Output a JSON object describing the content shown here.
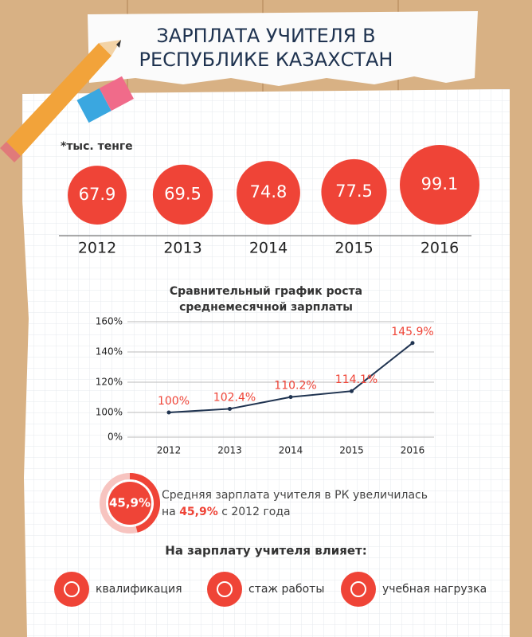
{
  "title": [
    "ЗАРПЛАТА УЧИТЕЛЯ В",
    "РЕСПУБЛИКЕ КАЗАХСТАН"
  ],
  "chart_data": [
    {
      "type": "bubble",
      "note": "*тыс. тенге",
      "categories": [
        "2012",
        "2013",
        "2014",
        "2015",
        "2016"
      ],
      "values": [
        67.9,
        69.5,
        74.8,
        77.5,
        99.1
      ],
      "color": "#ef4437"
    },
    {
      "type": "line",
      "title": [
        "Сравнительный график роста",
        "среднемесячной зарплаты"
      ],
      "categories": [
        "2012",
        "2013",
        "2014",
        "2015",
        "2016"
      ],
      "values": [
        100,
        102.4,
        110.2,
        114.1,
        145.9
      ],
      "value_labels": [
        "100%",
        "102.4%",
        "110.2%",
        "114.1%",
        "145.9%"
      ],
      "color": "#1f3350",
      "label_color": "#ef4437",
      "ylim": [
        0,
        160
      ],
      "axis_break": [
        0,
        100
      ],
      "yticks": [
        {
          "value": 0,
          "label": "0%"
        },
        {
          "value": 100,
          "label": "100%"
        },
        {
          "value": 120,
          "label": "120%"
        },
        {
          "value": 140,
          "label": "140%"
        },
        {
          "value": 160,
          "label": "160%"
        }
      ],
      "grid": true
    }
  ],
  "stat": {
    "ring": {
      "value": 45.9,
      "label": "45,9%"
    },
    "line1": "Средняя зарплата учителя в РК увеличилась",
    "before": "на",
    "after": "с 2012 года"
  },
  "factors": {
    "title": "На зарплату учителя влияет:",
    "items": [
      "квалификация",
      "стаж работы",
      "учебная нагрузка"
    ]
  }
}
